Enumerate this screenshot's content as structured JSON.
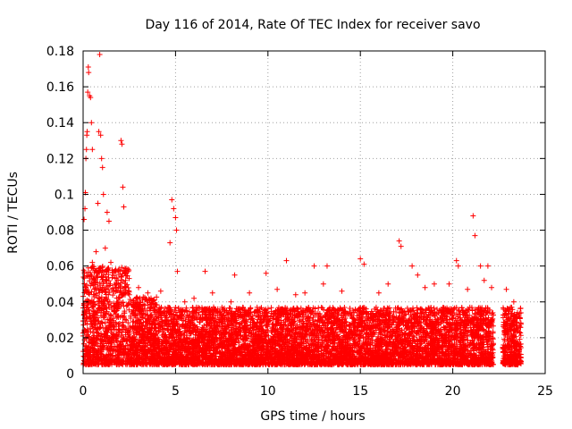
{
  "chart_data": {
    "type": "scatter",
    "title": "Day 116 of 2014, Rate Of TEC Index for receiver savo",
    "xlabel": "GPS time / hours",
    "ylabel": "ROTI / TECUs",
    "xlim": [
      0,
      25
    ],
    "ylim": [
      0,
      0.18
    ],
    "x_ticks": [
      0,
      5,
      10,
      15,
      20,
      25
    ],
    "x_tick_labels": [
      "0",
      "5",
      "10",
      "15",
      "20",
      "25"
    ],
    "y_ticks": [
      0,
      0.02,
      0.04,
      0.06,
      0.08,
      0.1,
      0.12,
      0.14,
      0.16,
      0.18
    ],
    "y_tick_labels": [
      "0",
      "0.02",
      "0.04",
      "0.06",
      "0.08",
      "0.1",
      "0.12",
      "0.14",
      "0.16",
      "0.18"
    ],
    "grid": true,
    "marker": "+",
    "color": "#ff0000",
    "series": [
      {
        "name": "ROTI",
        "note": "dense scatter; representative sample points (x: hours, y: TECU/min)",
        "points": [
          [
            0.05,
            0.086
          ],
          [
            0.1,
            0.092
          ],
          [
            0.12,
            0.101
          ],
          [
            0.15,
            0.12
          ],
          [
            0.18,
            0.125
          ],
          [
            0.2,
            0.133
          ],
          [
            0.22,
            0.135
          ],
          [
            0.25,
            0.157
          ],
          [
            0.28,
            0.171
          ],
          [
            0.3,
            0.168
          ],
          [
            0.35,
            0.155
          ],
          [
            0.4,
            0.154
          ],
          [
            0.45,
            0.14
          ],
          [
            0.5,
            0.125
          ],
          [
            0.9,
            0.178
          ],
          [
            0.85,
            0.135
          ],
          [
            0.95,
            0.133
          ],
          [
            1.0,
            0.12
          ],
          [
            1.05,
            0.115
          ],
          [
            1.1,
            0.1
          ],
          [
            0.8,
            0.095
          ],
          [
            2.05,
            0.13
          ],
          [
            2.1,
            0.128
          ],
          [
            2.15,
            0.104
          ],
          [
            2.2,
            0.093
          ],
          [
            1.4,
            0.085
          ],
          [
            1.3,
            0.09
          ],
          [
            4.8,
            0.097
          ],
          [
            4.9,
            0.092
          ],
          [
            5.0,
            0.087
          ],
          [
            5.05,
            0.08
          ],
          [
            4.7,
            0.073
          ],
          [
            5.1,
            0.057
          ],
          [
            6.6,
            0.057
          ],
          [
            8.2,
            0.055
          ],
          [
            9.9,
            0.056
          ],
          [
            11.0,
            0.063
          ],
          [
            12.5,
            0.06
          ],
          [
            13.2,
            0.06
          ],
          [
            15.0,
            0.064
          ],
          [
            15.2,
            0.061
          ],
          [
            17.1,
            0.074
          ],
          [
            17.2,
            0.071
          ],
          [
            17.8,
            0.06
          ],
          [
            18.1,
            0.055
          ],
          [
            19.8,
            0.05
          ],
          [
            20.2,
            0.063
          ],
          [
            20.3,
            0.06
          ],
          [
            21.1,
            0.088
          ],
          [
            21.2,
            0.077
          ],
          [
            21.5,
            0.06
          ],
          [
            21.9,
            0.06
          ],
          [
            22.9,
            0.047
          ],
          [
            23.3,
            0.04
          ],
          [
            0.5,
            0.062
          ],
          [
            0.7,
            0.068
          ],
          [
            1.2,
            0.07
          ],
          [
            1.5,
            0.062
          ],
          [
            2.3,
            0.052
          ],
          [
            3.0,
            0.048
          ],
          [
            3.5,
            0.045
          ],
          [
            4.2,
            0.046
          ],
          [
            5.5,
            0.04
          ],
          [
            6.0,
            0.042
          ],
          [
            7.0,
            0.045
          ],
          [
            8.0,
            0.04
          ],
          [
            9.0,
            0.045
          ],
          [
            10.5,
            0.047
          ],
          [
            11.5,
            0.044
          ],
          [
            12.0,
            0.045
          ],
          [
            13.0,
            0.05
          ],
          [
            14.0,
            0.046
          ],
          [
            16.0,
            0.045
          ],
          [
            16.5,
            0.05
          ],
          [
            18.5,
            0.048
          ],
          [
            19.0,
            0.05
          ],
          [
            20.8,
            0.047
          ],
          [
            21.7,
            0.052
          ],
          [
            22.1,
            0.048
          ],
          [
            23.0,
            0.036
          ],
          [
            23.5,
            0.034
          ]
        ]
      }
    ]
  }
}
